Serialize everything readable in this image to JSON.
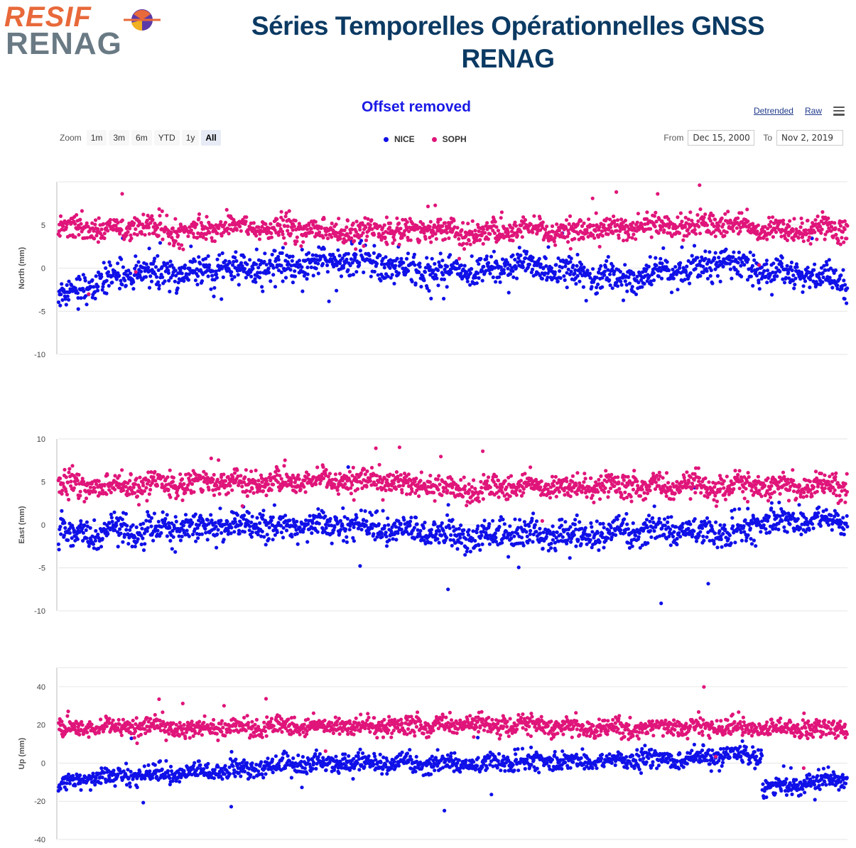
{
  "logo": {
    "line1": "RESIF",
    "line2": "RENAG"
  },
  "page_title": "Séries Temporelles Opérationnelles GNSS RENAG",
  "chart_title": "Offset removed",
  "links": {
    "detrended": "Detrended",
    "raw": "Raw"
  },
  "menu_icon": "hamburger-menu-icon",
  "zoom": {
    "label": "Zoom",
    "buttons": [
      "1m",
      "3m",
      "6m",
      "YTD",
      "1y",
      "All"
    ],
    "active": "All"
  },
  "range": {
    "from_label": "From",
    "from_value": "Dec 15, 2000",
    "to_label": "To",
    "to_value": "Nov 2, 2019"
  },
  "colors": {
    "nice": "#1010e8",
    "soph": "#e0157a",
    "title_blue": "#1a1ae6",
    "page_title": "#0b3a63"
  },
  "chart_data": [
    {
      "type": "scatter",
      "ylabel": "North (mm)",
      "ylim": [
        -10,
        10
      ],
      "yticks": [
        -10,
        -5,
        0,
        5
      ],
      "xlim": [
        "2000-12-15",
        "2019-11-02"
      ],
      "grid": true,
      "legend": "top-center",
      "series": [
        {
          "name": "NICE",
          "x": [
            "2001-01",
            "2002-01",
            "2003-01",
            "2004-01",
            "2005-01",
            "2006-01",
            "2007-01",
            "2008-01",
            "2009-01",
            "2010-01",
            "2011-01",
            "2012-01",
            "2013-01",
            "2014-01",
            "2015-01",
            "2016-01",
            "2017-01",
            "2018-01",
            "2019-01",
            "2019-10"
          ],
          "values": [
            -3,
            -1.5,
            -0.5,
            -0.5,
            0,
            0,
            0.5,
            1,
            0,
            -0.5,
            -0.5,
            0.5,
            -0.5,
            -1,
            -1,
            0,
            1,
            -0.5,
            -1,
            -2
          ],
          "spread": 1.2
        },
        {
          "name": "SOPH",
          "x": [
            "2001-01",
            "2002-01",
            "2003-01",
            "2004-01",
            "2005-01",
            "2006-01",
            "2007-01",
            "2008-01",
            "2009-01",
            "2010-01",
            "2011-01",
            "2012-01",
            "2013-01",
            "2014-01",
            "2015-01",
            "2016-01",
            "2017-01",
            "2018-01",
            "2019-01",
            "2019-10"
          ],
          "values": [
            5,
            4.5,
            5,
            4,
            5,
            4.5,
            4.5,
            4,
            4.5,
            4.5,
            4,
            4.5,
            4,
            4.5,
            5,
            5,
            5,
            4.5,
            4.5,
            4.5
          ],
          "spread": 1.0
        }
      ]
    },
    {
      "type": "scatter",
      "ylabel": "East (mm)",
      "ylim": [
        -10,
        10
      ],
      "yticks": [
        -10,
        -5,
        0,
        5,
        10
      ],
      "xlim": [
        "2000-12-15",
        "2019-11-02"
      ],
      "grid": true,
      "series": [
        {
          "name": "NICE",
          "x": [
            "2001-01",
            "2002-01",
            "2003-01",
            "2004-01",
            "2005-01",
            "2006-01",
            "2007-01",
            "2008-01",
            "2009-01",
            "2010-01",
            "2011-01",
            "2012-01",
            "2013-01",
            "2014-01",
            "2015-01",
            "2016-01",
            "2017-01",
            "2018-01",
            "2019-01",
            "2019-10"
          ],
          "values": [
            -1,
            -1,
            -0.5,
            -0.5,
            0,
            0,
            0,
            0,
            -0.5,
            -1,
            -1.5,
            -1,
            -1,
            -1,
            -0.5,
            -0.5,
            -1,
            0.5,
            0.5,
            0.5
          ],
          "spread": 1.2
        },
        {
          "name": "SOPH",
          "x": [
            "2001-01",
            "2002-01",
            "2003-01",
            "2004-01",
            "2005-01",
            "2006-01",
            "2007-01",
            "2008-01",
            "2009-01",
            "2010-01",
            "2011-01",
            "2012-01",
            "2013-01",
            "2014-01",
            "2015-01",
            "2016-01",
            "2017-01",
            "2018-01",
            "2019-01",
            "2019-10"
          ],
          "values": [
            4.5,
            4.5,
            4.5,
            5,
            5,
            5,
            5,
            5,
            5,
            4.5,
            4,
            4.5,
            4.5,
            4.5,
            4.5,
            4.5,
            4.5,
            4.5,
            4.5,
            4.5
          ],
          "spread": 1.0
        }
      ]
    },
    {
      "type": "scatter",
      "ylabel": "Up (mm)",
      "ylim": [
        -40,
        50
      ],
      "yticks": [
        -40,
        -20,
        0,
        20,
        40
      ],
      "xlim": [
        "2000-12-15",
        "2019-11-02"
      ],
      "grid": true,
      "series": [
        {
          "name": "NICE",
          "x": [
            "2001-01",
            "2002-01",
            "2003-01",
            "2004-01",
            "2005-01",
            "2006-01",
            "2007-01",
            "2008-01",
            "2009-01",
            "2010-01",
            "2011-01",
            "2012-01",
            "2013-01",
            "2014-01",
            "2015-01",
            "2016-01",
            "2017-01",
            "2017-10",
            "2017-11",
            "2018-06",
            "2019-01",
            "2019-10"
          ],
          "values": [
            -10,
            -7,
            -6,
            -5,
            -4,
            -2,
            0,
            1,
            0,
            0,
            0,
            1,
            1,
            1,
            2,
            2,
            4,
            5,
            -12,
            -13,
            -9,
            -8
          ],
          "spread": 3.5
        },
        {
          "name": "SOPH",
          "x": [
            "2001-01",
            "2002-01",
            "2003-01",
            "2004-01",
            "2005-01",
            "2006-01",
            "2007-01",
            "2008-01",
            "2009-01",
            "2010-01",
            "2011-01",
            "2012-01",
            "2013-01",
            "2014-01",
            "2015-01",
            "2016-01",
            "2017-01",
            "2018-01",
            "2019-01",
            "2019-10"
          ],
          "values": [
            18,
            18,
            19,
            18,
            19,
            19,
            19,
            20,
            19,
            20,
            20,
            20,
            19,
            18,
            19,
            19,
            19,
            18,
            18,
            18
          ],
          "spread": 3.5
        }
      ]
    }
  ]
}
